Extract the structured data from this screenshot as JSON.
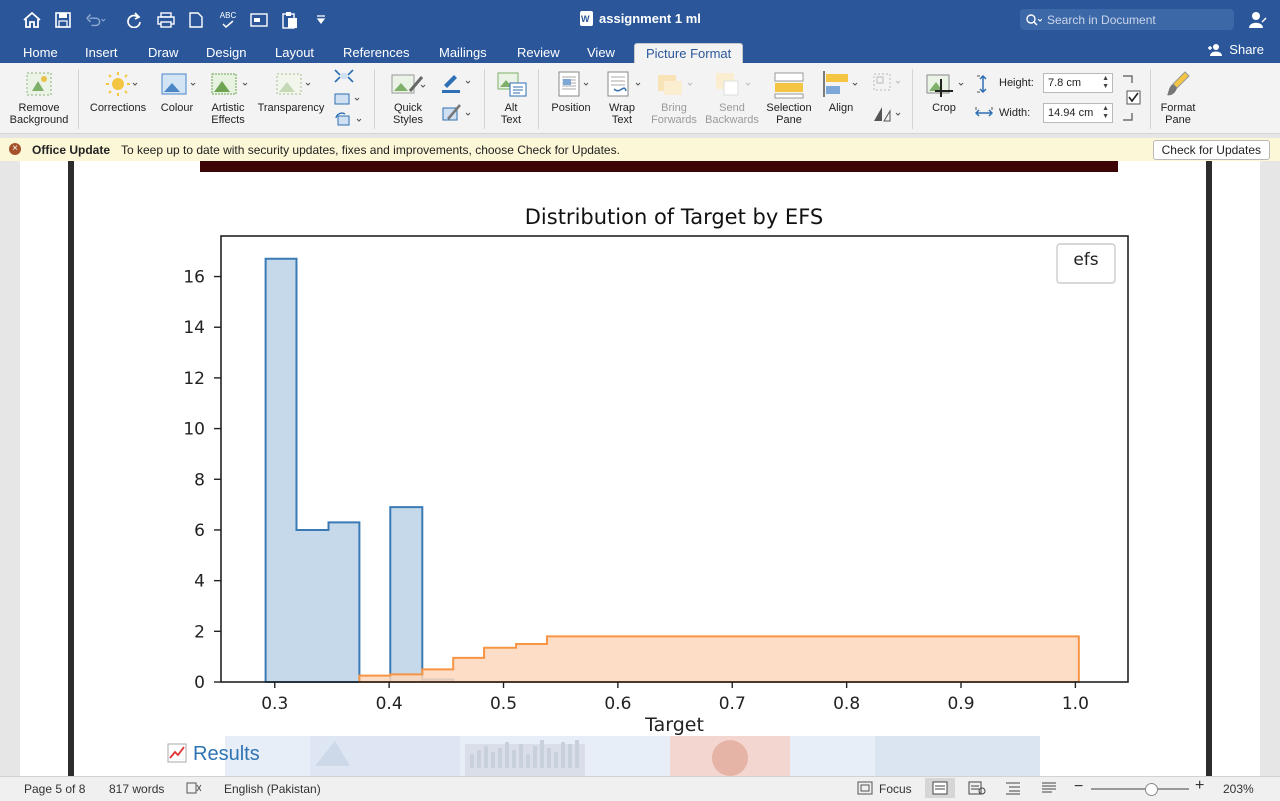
{
  "app": {
    "doc_title": "assignment 1 ml",
    "search_placeholder": "Search in Document",
    "share_label": "Share"
  },
  "tabs": [
    {
      "label": "Home"
    },
    {
      "label": "Insert"
    },
    {
      "label": "Draw"
    },
    {
      "label": "Design"
    },
    {
      "label": "Layout"
    },
    {
      "label": "References"
    },
    {
      "label": "Mailings"
    },
    {
      "label": "Review"
    },
    {
      "label": "View"
    },
    {
      "label": "Picture Format",
      "active": true
    }
  ],
  "ribbon": {
    "remove_background": {
      "line1": "Remove",
      "line2": "Background"
    },
    "corrections": "Corrections",
    "colour": "Colour",
    "artistic_effects": {
      "line1": "Artistic",
      "line2": "Effects"
    },
    "transparency": "Transparency",
    "quick_styles": {
      "line1": "Quick",
      "line2": "Styles"
    },
    "alt_text": {
      "line1": "Alt",
      "line2": "Text"
    },
    "position": "Position",
    "wrap_text": {
      "line1": "Wrap",
      "line2": "Text"
    },
    "bring_forwards": {
      "line1": "Bring",
      "line2": "Forwards"
    },
    "send_backwards": {
      "line1": "Send",
      "line2": "Backwards"
    },
    "selection_pane": {
      "line1": "Selection",
      "line2": "Pane"
    },
    "align": "Align",
    "crop": "Crop",
    "height_label": "Height:",
    "height_value": "7.8 cm",
    "width_label": "Width:",
    "width_value": "14.94 cm",
    "format_pane": {
      "line1": "Format",
      "line2": "Pane"
    }
  },
  "message_bar": {
    "title": "Office Update",
    "text": "To keep up to date with security updates, fixes and improvements, choose Check for Updates.",
    "button": "Check for Updates"
  },
  "document": {
    "results_heading": "Results"
  },
  "chart_data": {
    "type": "histogram",
    "title": "Distribution of Target by EFS",
    "xlabel": "Target",
    "ylabel": "",
    "legend_title": "efs",
    "legend_position": "top-right",
    "xlim": [
      0.253,
      1.046
    ],
    "ylim": [
      0,
      17.6
    ],
    "xticks": [
      0.3,
      0.4,
      0.5,
      0.6,
      0.7,
      0.8,
      0.9,
      1.0
    ],
    "xtick_labels": [
      "0.3",
      "0.4",
      "0.5",
      "0.6",
      "0.7",
      "0.8",
      "0.9",
      "1.0"
    ],
    "yticks": [
      0,
      2,
      4,
      6,
      8,
      10,
      12,
      14,
      16
    ],
    "ytick_labels": [
      "0",
      "2",
      "4",
      "6",
      "8",
      "10",
      "12",
      "14",
      "16"
    ],
    "colors": {
      "blue_fill": "#c5d9ea",
      "blue_line": "#3a7bb5",
      "orange_fill": "#fdd7bb",
      "orange_line": "#f79545"
    },
    "series": [
      {
        "bin_edges": [
          0.292,
          0.319,
          0.347,
          0.374,
          0.401,
          0.429,
          0.456,
          0.483,
          0.511,
          0.538,
          0.566,
          0.593,
          0.62,
          0.648,
          0.675,
          0.702,
          0.73,
          0.757,
          0.784,
          0.812,
          0.839,
          0.866,
          0.894,
          0.921,
          0.948,
          0.976,
          1.003
        ],
        "values": [
          16.7,
          6.0,
          6.3,
          0.0,
          6.9,
          0.1,
          0.0,
          0.0,
          0.0,
          0.0,
          0.0,
          0.0,
          0.0,
          0.0,
          0.0,
          0.0,
          0.0,
          0.0,
          0.0,
          0.0,
          0.0,
          0.0,
          0.0,
          0.0,
          0.0,
          0.0
        ]
      },
      {
        "bin_edges": [
          0.374,
          0.401,
          0.429,
          0.456,
          0.483,
          0.511,
          0.538,
          0.566,
          0.593,
          0.62,
          0.648,
          0.675,
          0.702,
          0.73,
          0.757,
          0.784,
          0.812,
          0.839,
          0.866,
          0.894,
          0.921,
          0.948,
          0.976,
          1.003
        ],
        "values": [
          0.25,
          0.3,
          0.5,
          0.95,
          1.35,
          1.5,
          1.8,
          1.8,
          1.8,
          1.8,
          1.8,
          1.8,
          1.8,
          1.8,
          1.8,
          1.8,
          1.8,
          1.8,
          1.8,
          1.8,
          1.8,
          1.8,
          1.8
        ]
      }
    ]
  },
  "status": {
    "page": "Page 5 of 8",
    "words": "817 words",
    "language": "English (Pakistan)",
    "focus": "Focus",
    "zoom": "203%"
  }
}
